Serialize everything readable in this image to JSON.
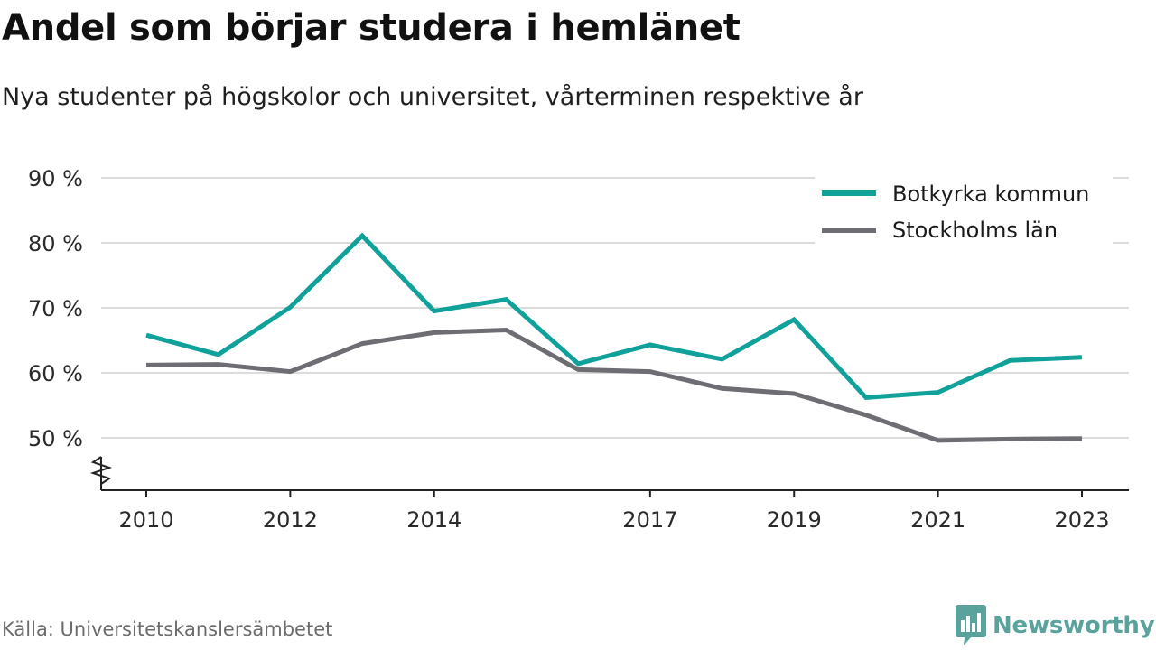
{
  "brand": {
    "name": "Newsworthy",
    "color": "#5aa39c"
  },
  "source": "Källa: Universitetskanslersämbetet",
  "chart_data": {
    "type": "line",
    "title": "Andel som börjar studera i hemlänet",
    "subtitle": "Nya studenter på högskolor och universitet, vårterminen respektive år",
    "xlabel": "",
    "ylabel": "",
    "x": [
      2010,
      2011,
      2012,
      2013,
      2014,
      2015,
      2016,
      2017,
      2018,
      2019,
      2020,
      2021,
      2022,
      2023
    ],
    "x_ticks": [
      "2010",
      "2012",
      "2014",
      "2017",
      "2019",
      "2021",
      "2023"
    ],
    "y_ticks": [
      "50 %",
      "60 %",
      "70 %",
      "80 %",
      "90 %"
    ],
    "ylim": [
      50,
      90
    ],
    "y_axis_break": true,
    "grid": true,
    "legend_position": "top-right",
    "series": [
      {
        "name": "Botkyrka kommun",
        "color": "#10a29a",
        "values": [
          65.8,
          62.8,
          70.1,
          81.1,
          69.5,
          71.3,
          61.4,
          64.3,
          62.1,
          68.2,
          56.2,
          57.0,
          61.9,
          62.4
        ]
      },
      {
        "name": "Stockholms län",
        "color": "#6e6d73",
        "values": [
          61.2,
          61.3,
          60.2,
          64.5,
          66.2,
          66.6,
          60.5,
          60.2,
          57.6,
          56.8,
          53.5,
          49.6,
          49.8,
          49.9
        ]
      }
    ]
  }
}
